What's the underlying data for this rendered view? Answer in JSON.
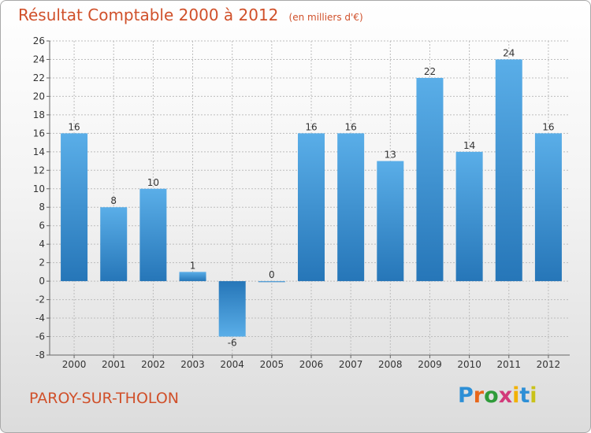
{
  "header": {
    "title": "Résultat Comptable 2000 à 2012",
    "unit": "(en milliers d'€)"
  },
  "footer": {
    "place": "PAROY-SUR-THOLON",
    "brand_letters": [
      {
        "ch": "P",
        "color": "#2d8fd6"
      },
      {
        "ch": "r",
        "color": "#e8671a"
      },
      {
        "ch": "o",
        "color": "#2f9b3a"
      },
      {
        "ch": "x",
        "color": "#d23a7a"
      },
      {
        "ch": "i",
        "color": "#f2b100"
      },
      {
        "ch": "t",
        "color": "#2d8fd6"
      },
      {
        "ch": "i",
        "color": "#c9c21a"
      }
    ]
  },
  "colors": {
    "title": "#d0502a",
    "bar_light": "#5aaee8",
    "bar_dark": "#2676b8",
    "grid": "#bdbdbd",
    "axis": "#666666"
  },
  "chart_data": {
    "type": "bar",
    "title": "Résultat Comptable 2000 à 2012",
    "subtitle": "(en milliers d'€)",
    "xlabel": "",
    "ylabel": "",
    "categories": [
      "2000",
      "2001",
      "2002",
      "2003",
      "2004",
      "2005",
      "2006",
      "2007",
      "2008",
      "2009",
      "2010",
      "2011",
      "2012"
    ],
    "values": [
      16,
      8,
      10,
      1,
      -6,
      0,
      16,
      16,
      13,
      22,
      14,
      24,
      16
    ],
    "value_labels": [
      "16",
      "8",
      "10",
      "1",
      "-6",
      "0",
      "16",
      "16",
      "13",
      "22",
      "14",
      "24",
      "16"
    ],
    "ylim": [
      -8,
      26
    ],
    "yticks": [
      -8,
      -6,
      -4,
      -2,
      0,
      2,
      4,
      6,
      8,
      10,
      12,
      14,
      16,
      18,
      20,
      22,
      24,
      26
    ],
    "grid": true,
    "legend": "none"
  }
}
